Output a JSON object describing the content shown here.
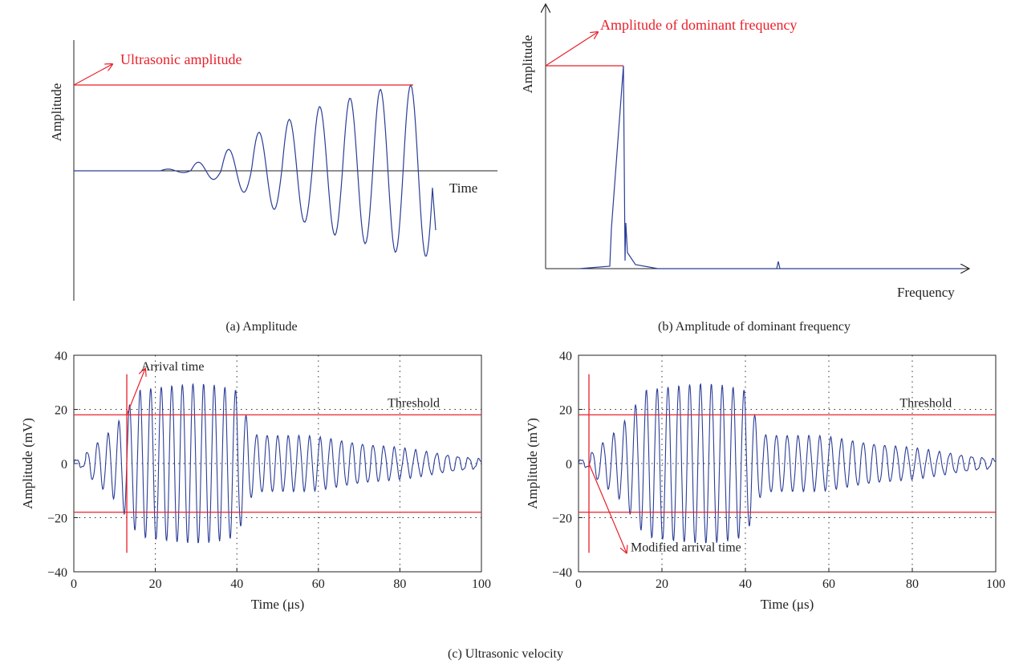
{
  "captions": {
    "a": "(a)  Amplitude",
    "b": "(b)  Amplitude of dominant frequency",
    "c": "(c)  Ultrasonic velocity"
  },
  "colors": {
    "signal": "#2b3d97",
    "annotation": "#e8202a",
    "axis": "#222222",
    "grid": "#333333"
  },
  "chart_data": [
    {
      "id": "a",
      "type": "line",
      "ylabel": "Amplitude",
      "xlabel": "Time",
      "annotations": [
        "Ultrasonic amplitude"
      ],
      "description_free": true,
      "peak_envelope": [
        0.02,
        0.1,
        0.25,
        0.45,
        0.6,
        0.75,
        0.85,
        0.95,
        1.0
      ],
      "ticks": false
    },
    {
      "id": "b",
      "type": "line",
      "ylabel": "Amplitude",
      "xlabel": "Frequency",
      "annotations": [
        "Amplitude of dominant frequency"
      ],
      "ticks": false
    },
    {
      "id": "c-left",
      "type": "line",
      "xlabel": "Time (μs)",
      "ylabel": "Amplitude (mV)",
      "xlim": [
        0,
        100
      ],
      "ylim": [
        -40,
        40
      ],
      "xticks": [
        "0",
        "20",
        "40",
        "60",
        "80",
        "100"
      ],
      "yticks": [
        "40",
        "20",
        "0",
        "−20",
        "−40"
      ],
      "threshold": 18,
      "threshold_label": "Threshold",
      "arrival_time": 13,
      "arrival_label": "Arrival time",
      "grid": "dotted"
    },
    {
      "id": "c-right",
      "type": "line",
      "xlabel": "Time (μs)",
      "ylabel": "Amplitude (mV)",
      "xlim": [
        0,
        100
      ],
      "ylim": [
        -40,
        40
      ],
      "xticks": [
        "0",
        "20",
        "40",
        "60",
        "80",
        "100"
      ],
      "yticks": [
        "40",
        "20",
        "0",
        "−20",
        "−40"
      ],
      "threshold": 18,
      "threshold_label": "Threshold",
      "arrival_time": 2.5,
      "arrival_label": "Modified arrival time",
      "grid": "dotted"
    }
  ]
}
